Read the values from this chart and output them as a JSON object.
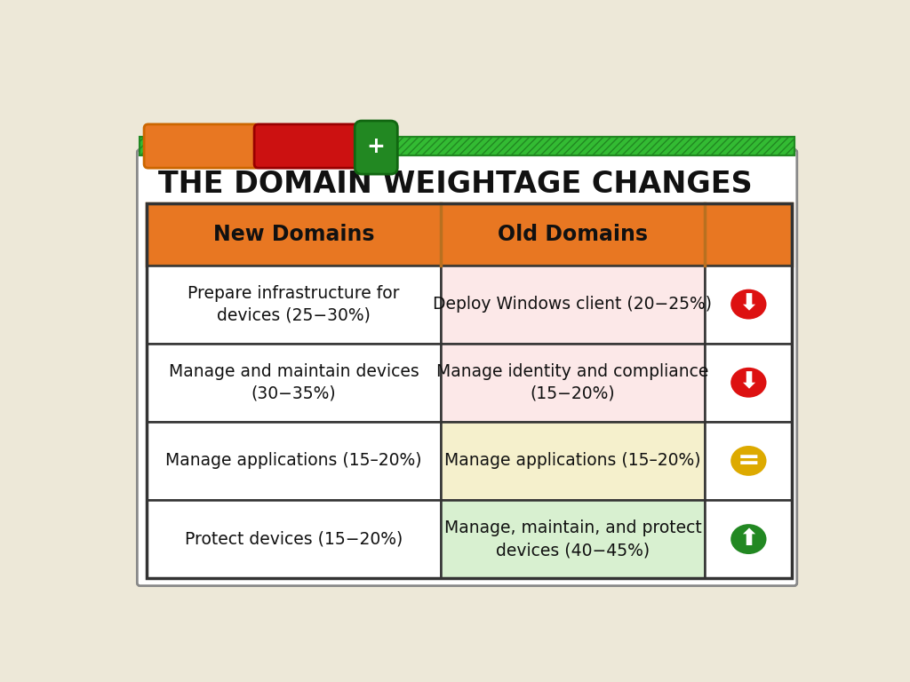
{
  "title": "THE DOMAIN WEIGHTAGE CHANGES",
  "background_color": "#ede8d8",
  "card_bg": "#ffffff",
  "header_color": "#e87722",
  "col_headers": [
    "New Domains",
    "Old Domains"
  ],
  "rows": [
    {
      "new_domain": "Prepare infrastructure for\ndevices (25−30%)",
      "old_domain": "Deploy Windows client (20−25%)",
      "old_bg": "#fce8e8",
      "arrow": "down",
      "arrow_color": "#dd1111"
    },
    {
      "new_domain": "Manage and maintain devices\n(30−35%)",
      "old_domain": "Manage identity and compliance\n(15−20%)",
      "old_bg": "#fce8e8",
      "arrow": "down",
      "arrow_color": "#dd1111"
    },
    {
      "new_domain": "Manage applications (15–20%)",
      "old_domain": "Manage applications (15–20%)",
      "old_bg": "#f5f0cc",
      "arrow": "equal",
      "arrow_color": "#ddaa00"
    },
    {
      "new_domain": "Protect devices (15−20%)",
      "old_domain": "Manage, maintain, and protect\ndevices (40−45%)",
      "old_bg": "#d8f0d0",
      "arrow": "up",
      "arrow_color": "#228822"
    }
  ],
  "table_border_color": "#333333",
  "table_inner_color": "#555555",
  "header_border_color": "#b87020",
  "green_bar_color": "#33bb33",
  "green_bar_dark": "#228822"
}
